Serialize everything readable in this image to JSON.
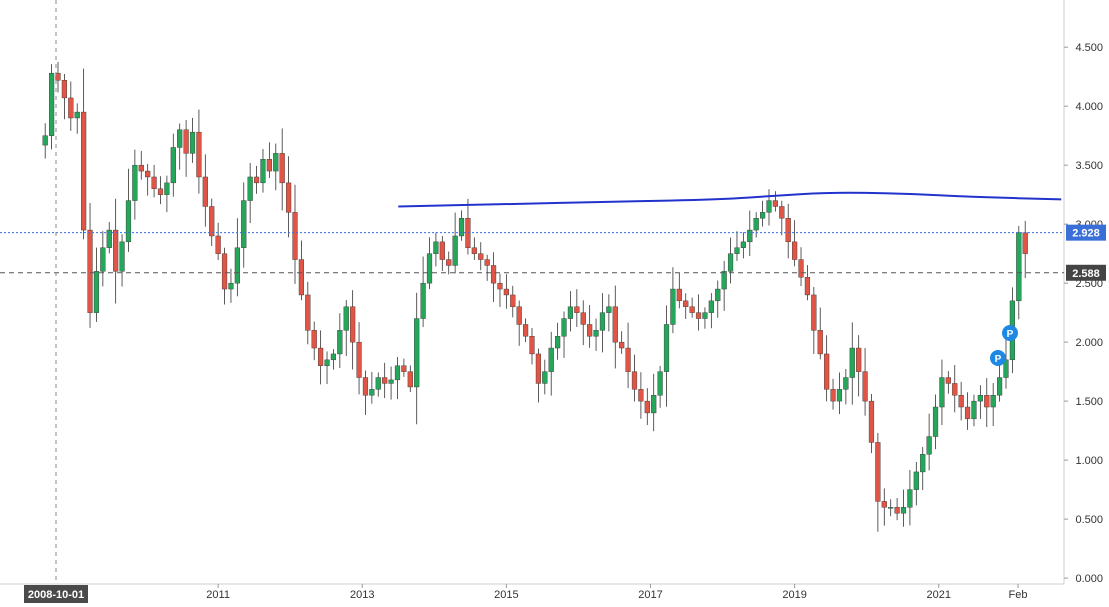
{
  "chart_data": {
    "type": "candlestick",
    "title": "",
    "xlabel": "",
    "ylabel": "",
    "ylim": [
      -0.05,
      4.9
    ],
    "y_ticks": [
      "0.000",
      "0.500",
      "1.000",
      "1.500",
      "2.000",
      "2.500",
      "3.000",
      "3.500",
      "4.000",
      "4.500"
    ],
    "x_ticks": [
      {
        "label": "2011",
        "t": 2011.0
      },
      {
        "label": "2013",
        "t": 2013.0
      },
      {
        "label": "2015",
        "t": 2015.0
      },
      {
        "label": "2017",
        "t": 2017.0
      },
      {
        "label": "2019",
        "t": 2019.0
      },
      {
        "label": "2021",
        "t": 2021.0
      },
      {
        "label": "Feb",
        "t": 2022.1
      }
    ],
    "crosshair_label": "2008-10-01",
    "price_labels": {
      "current": "2.928",
      "reference": "2.588"
    },
    "colors": {
      "up": "#26a65b",
      "down": "#e05545",
      "trendline": "#2233cc",
      "current": "#3a6fd8",
      "reference": "#555555",
      "marker": "#1e88e5"
    },
    "markers": [
      "P",
      "P"
    ],
    "trendline": [
      [
        2013.5,
        3.15
      ],
      [
        2015,
        3.17
      ],
      [
        2016.5,
        3.19
      ],
      [
        2018,
        3.21
      ],
      [
        2018.7,
        3.24
      ],
      [
        2019.5,
        3.27
      ],
      [
        2020.5,
        3.26
      ],
      [
        2021.5,
        3.23
      ],
      [
        2022.7,
        3.21
      ]
    ],
    "ohlc_summary": "monthly candles from 2008-10 to 2022-03, closes sampled below",
    "closes": [
      3.75,
      4.28,
      4.22,
      4.07,
      3.9,
      3.95,
      2.95,
      2.25,
      2.6,
      2.8,
      2.95,
      2.6,
      2.85,
      3.2,
      3.5,
      3.45,
      3.4,
      3.3,
      3.25,
      3.35,
      3.65,
      3.8,
      3.6,
      3.78,
      3.4,
      3.15,
      2.9,
      2.75,
      2.45,
      2.5,
      2.8,
      3.2,
      3.4,
      3.35,
      3.55,
      3.45,
      3.6,
      3.35,
      3.1,
      2.7,
      2.4,
      2.1,
      1.95,
      1.8,
      1.85,
      1.9,
      2.1,
      2.3,
      2.0,
      1.7,
      1.55,
      1.6,
      1.7,
      1.65,
      1.68,
      1.8,
      1.75,
      1.62,
      2.2,
      2.5,
      2.75,
      2.85,
      2.7,
      2.65,
      2.9,
      3.05,
      2.8,
      2.75,
      2.7,
      2.65,
      2.5,
      2.45,
      2.4,
      2.3,
      2.15,
      2.05,
      1.9,
      1.65,
      1.75,
      1.95,
      2.05,
      2.2,
      2.3,
      2.25,
      2.15,
      2.05,
      2.1,
      2.25,
      2.3,
      2.0,
      1.95,
      1.75,
      1.6,
      1.5,
      1.4,
      1.55,
      1.75,
      2.15,
      2.45,
      2.35,
      2.3,
      2.25,
      2.2,
      2.25,
      2.35,
      2.45,
      2.6,
      2.75,
      2.8,
      2.85,
      2.95,
      3.05,
      3.1,
      3.2,
      3.15,
      3.05,
      2.85,
      2.7,
      2.55,
      2.4,
      2.1,
      1.9,
      1.6,
      1.5,
      1.6,
      1.7,
      1.95,
      1.75,
      1.5,
      1.15,
      0.65,
      0.6,
      0.6,
      0.55,
      0.6,
      0.75,
      0.9,
      1.05,
      1.2,
      1.45,
      1.7,
      1.65,
      1.55,
      1.45,
      1.35,
      1.5,
      1.55,
      1.45,
      1.55,
      1.7,
      1.85,
      2.35,
      2.928,
      2.75
    ]
  }
}
